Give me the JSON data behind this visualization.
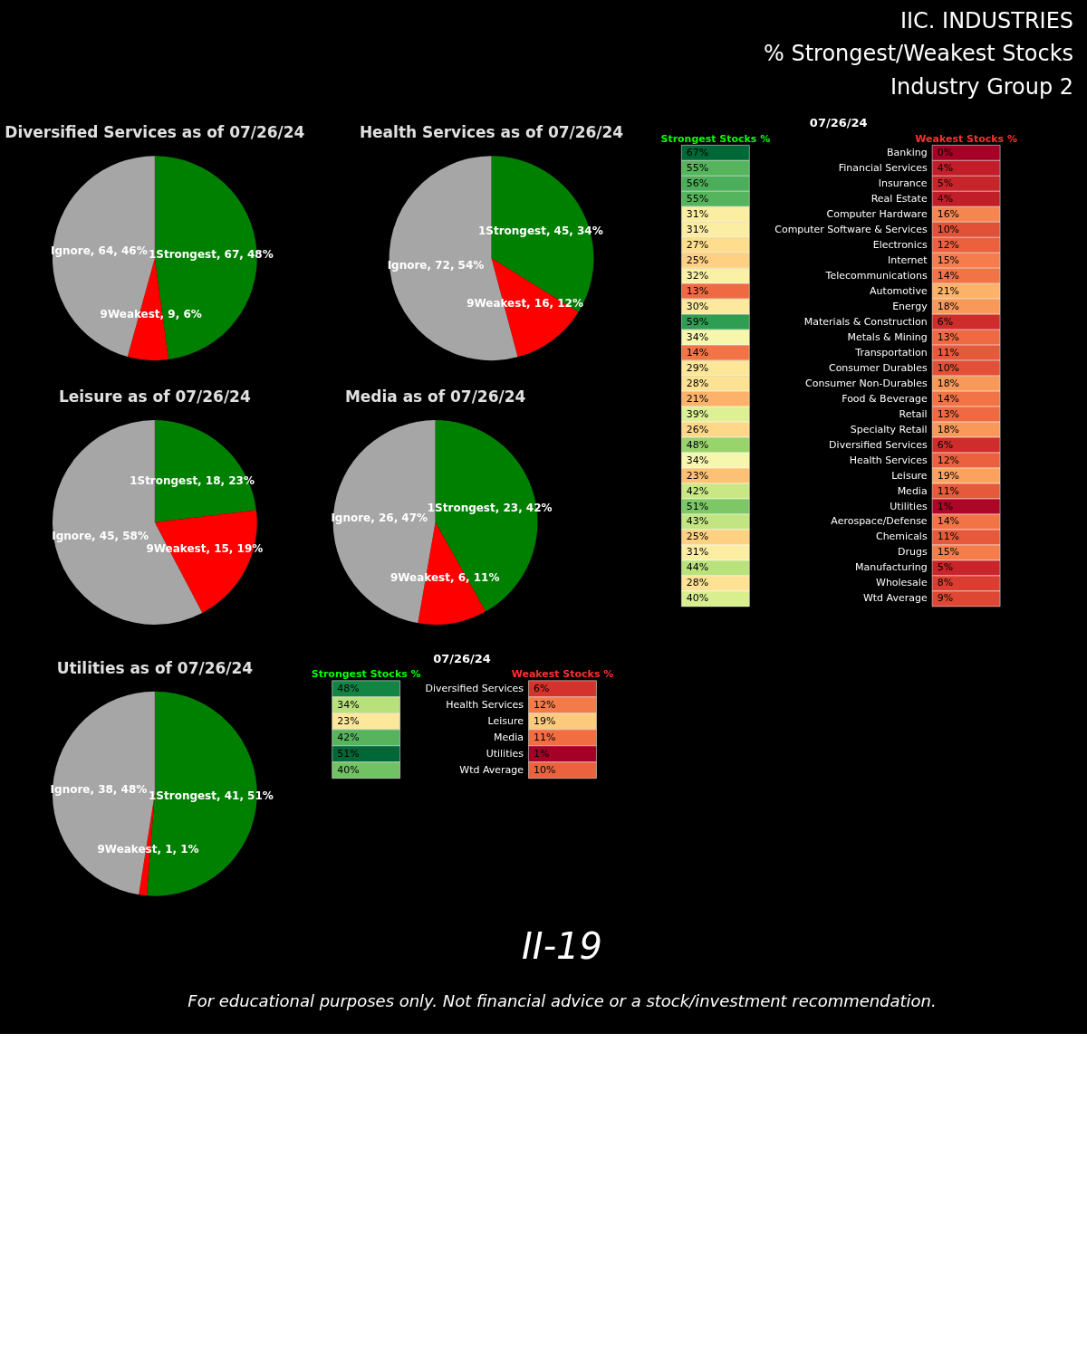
{
  "chart_data": [
    {
      "type": "other",
      "title": "IIC. INDUSTRIES",
      "annotations": [
        "% Strongest/Weakest Stocks",
        "Industry Group 2"
      ]
    },
    {
      "type": "pie",
      "title": "Diversified Services as of 07/26/24",
      "categories": [
        "1Strongest",
        "9Weakest",
        "Ignore"
      ],
      "values": [
        67,
        9,
        64
      ],
      "value_labels": [
        "67, 48%",
        "9, 6%",
        "64, 46%"
      ],
      "colors": [
        "#008000",
        "#ff0000",
        "#a6a6a6"
      ]
    },
    {
      "type": "pie",
      "title": "Health Services as of 07/26/24",
      "categories": [
        "1Strongest",
        "9Weakest",
        "Ignore"
      ],
      "values": [
        45,
        16,
        72
      ],
      "value_labels": [
        "45, 34%",
        "16, 12%",
        "72, 54%"
      ],
      "colors": [
        "#008000",
        "#ff0000",
        "#a6a6a6"
      ]
    },
    {
      "type": "pie",
      "title": "Leisure as of 07/26/24",
      "categories": [
        "1Strongest",
        "9Weakest",
        "Ignore"
      ],
      "values": [
        18,
        15,
        45
      ],
      "value_labels": [
        "18, 23%",
        "15, 19%",
        "45, 58%"
      ],
      "colors": [
        "#008000",
        "#ff0000",
        "#a6a6a6"
      ]
    },
    {
      "type": "pie",
      "title": "Media as of 07/26/24",
      "categories": [
        "1Strongest",
        "9Weakest",
        "Ignore"
      ],
      "values": [
        23,
        6,
        26
      ],
      "value_labels": [
        "23, 42%",
        "6, 11%",
        "26, 47%"
      ],
      "colors": [
        "#008000",
        "#ff0000",
        "#a6a6a6"
      ]
    },
    {
      "type": "pie",
      "title": "Utilities as of 07/26/24",
      "categories": [
        "1Strongest",
        "9Weakest",
        "Ignore"
      ],
      "values": [
        41,
        1,
        38
      ],
      "value_labels": [
        "41, 51%",
        "1, 1%",
        "38, 48%"
      ],
      "colors": [
        "#008000",
        "#ff0000",
        "#a6a6a6"
      ]
    },
    {
      "type": "heatmap",
      "title": "07/26/24",
      "categories": [
        "Strongest Stocks %",
        "Weakest Stocks %"
      ],
      "y_categories": [
        "Diversified Services",
        "Health Services",
        "Leisure",
        "Media",
        "Utilities",
        "Wtd Average"
      ],
      "cells": [
        [
          48,
          6
        ],
        [
          34,
          12
        ],
        [
          23,
          19
        ],
        [
          42,
          11
        ],
        [
          51,
          1
        ],
        [
          40,
          10
        ]
      ],
      "cell_labels": [
        [
          "48%",
          "6%"
        ],
        [
          "34%",
          "12%"
        ],
        [
          "23%",
          "19%"
        ],
        [
          "42%",
          "11%"
        ],
        [
          "51%",
          "1%"
        ],
        [
          "40%",
          "10%"
        ]
      ]
    },
    {
      "type": "heatmap",
      "title": "07/26/24",
      "categories": [
        "Strongest Stocks %",
        "Weakest Stocks %"
      ],
      "y_categories": [
        "Banking",
        "Financial Services",
        "Insurance",
        "Real Estate",
        "Computer Hardware",
        "Computer Software & Services",
        "Electronics",
        "Internet",
        "Telecommunications",
        "Automotive",
        "Energy",
        "Materials & Construction",
        "Metals & Mining",
        "Transportation",
        "Consumer Durables",
        "Consumer Non-Durables",
        "Food & Beverage",
        "Retail",
        "Specialty Retail",
        "Diversified Services",
        "Health Services",
        "Leisure",
        "Media",
        "Utilities",
        "Aerospace/Defense",
        "Chemicals",
        "Drugs",
        "Manufacturing",
        "Wholesale",
        "Wtd Average"
      ],
      "cells": [
        [
          67,
          0
        ],
        [
          55,
          4
        ],
        [
          56,
          5
        ],
        [
          55,
          4
        ],
        [
          31,
          16
        ],
        [
          31,
          10
        ],
        [
          27,
          12
        ],
        [
          25,
          15
        ],
        [
          32,
          14
        ],
        [
          13,
          21
        ],
        [
          30,
          18
        ],
        [
          59,
          6
        ],
        [
          34,
          13
        ],
        [
          14,
          11
        ],
        [
          29,
          10
        ],
        [
          28,
          18
        ],
        [
          21,
          14
        ],
        [
          39,
          13
        ],
        [
          26,
          18
        ],
        [
          48,
          6
        ],
        [
          34,
          12
        ],
        [
          23,
          19
        ],
        [
          42,
          11
        ],
        [
          51,
          1
        ],
        [
          43,
          14
        ],
        [
          25,
          11
        ],
        [
          31,
          15
        ],
        [
          44,
          5
        ],
        [
          28,
          8
        ],
        [
          40,
          9
        ]
      ],
      "cell_labels": [
        [
          "67%",
          "0%"
        ],
        [
          "55%",
          "4%"
        ],
        [
          "56%",
          "5%"
        ],
        [
          "55%",
          "4%"
        ],
        [
          "31%",
          "16%"
        ],
        [
          "31%",
          "10%"
        ],
        [
          "27%",
          "12%"
        ],
        [
          "25%",
          "15%"
        ],
        [
          "32%",
          "14%"
        ],
        [
          "13%",
          "21%"
        ],
        [
          "30%",
          "18%"
        ],
        [
          "59%",
          "6%"
        ],
        [
          "34%",
          "13%"
        ],
        [
          "14%",
          "11%"
        ],
        [
          "29%",
          "10%"
        ],
        [
          "28%",
          "18%"
        ],
        [
          "21%",
          "14%"
        ],
        [
          "39%",
          "13%"
        ],
        [
          "26%",
          "18%"
        ],
        [
          "48%",
          "6%"
        ],
        [
          "34%",
          "12%"
        ],
        [
          "23%",
          "19%"
        ],
        [
          "42%",
          "11%"
        ],
        [
          "51%",
          "1%"
        ],
        [
          "43%",
          "14%"
        ],
        [
          "25%",
          "11%"
        ],
        [
          "31%",
          "15%"
        ],
        [
          "44%",
          "5%"
        ],
        [
          "28%",
          "8%"
        ],
        [
          "40%",
          "9%"
        ]
      ]
    },
    {
      "type": "other",
      "annotations": [
        "II-19",
        "For educational purposes only. Not financial advice or a stock/investment recommendation."
      ]
    }
  ]
}
